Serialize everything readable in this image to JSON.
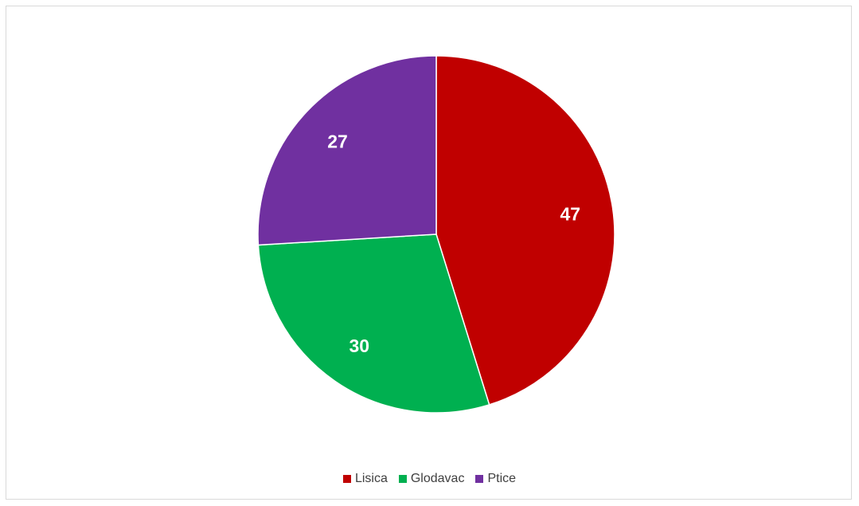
{
  "chart_data": {
    "type": "pie",
    "categories": [
      "Lisica",
      "Glodavac",
      "Ptice"
    ],
    "values": [
      47,
      30,
      27
    ],
    "colors": [
      "#c00000",
      "#00b050",
      "#7030a0"
    ],
    "data_labels": [
      "47",
      "30",
      "27"
    ],
    "legend_position": "bottom",
    "start_angle_deg": 0,
    "direction": "clockwise"
  }
}
